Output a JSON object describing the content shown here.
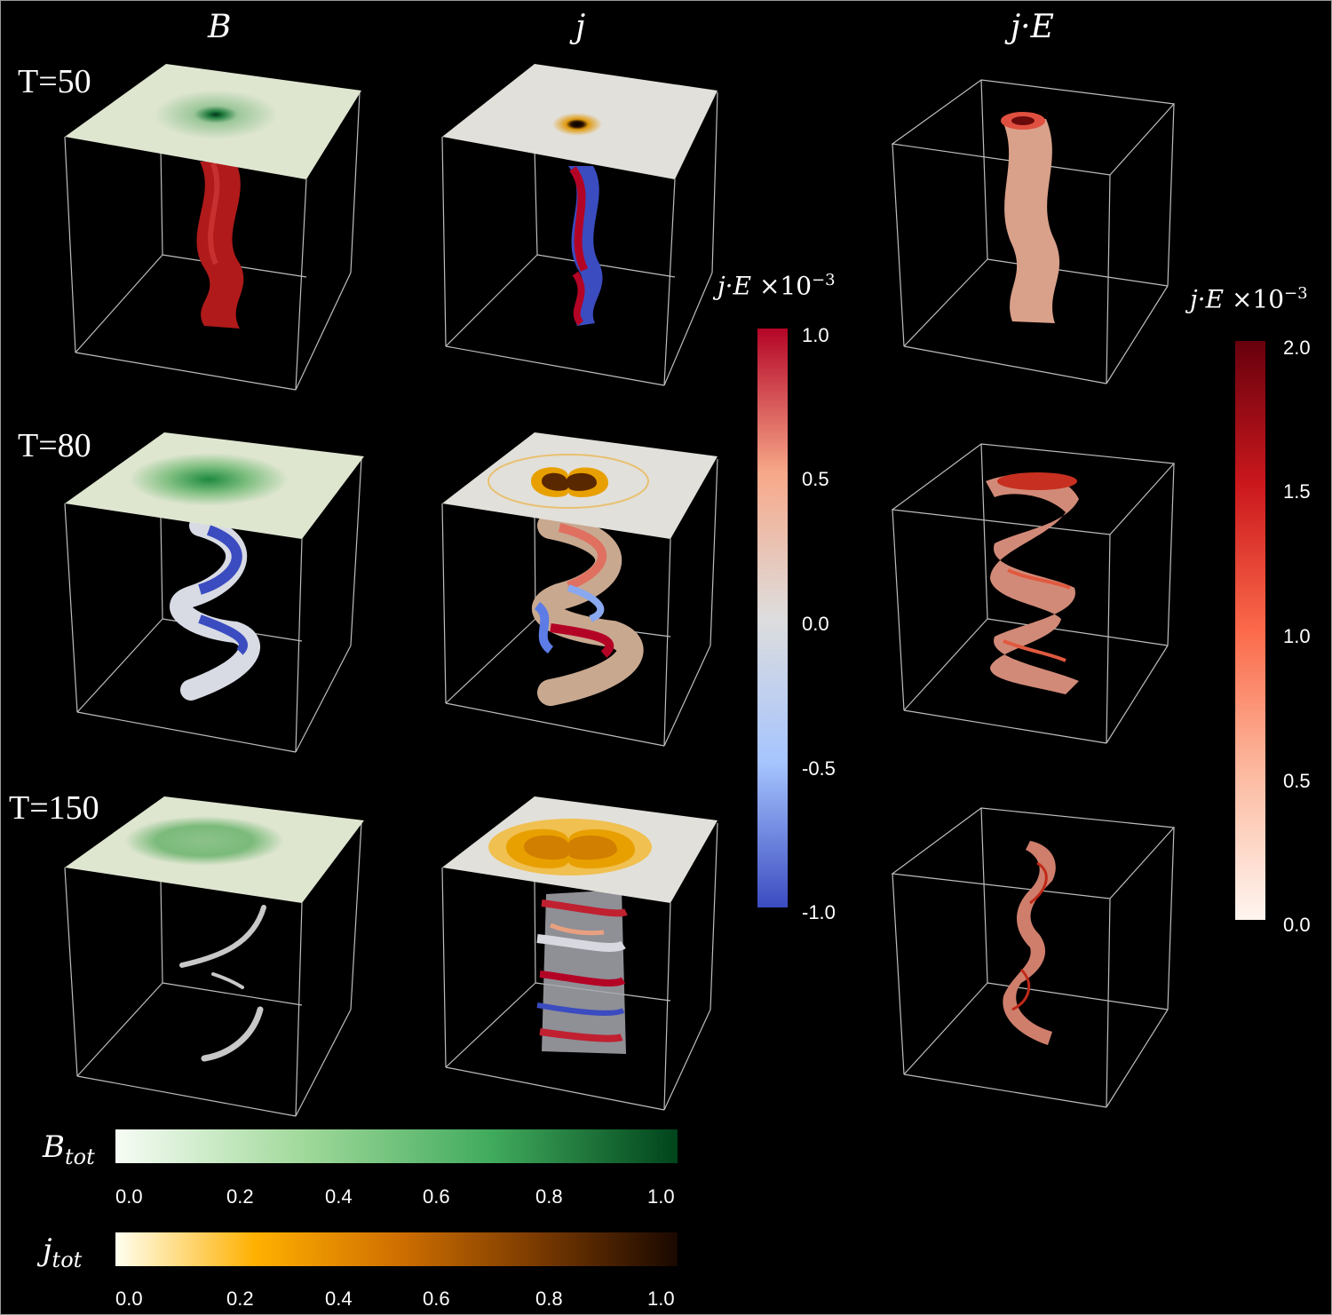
{
  "columns": [
    "B",
    "j",
    "j·E"
  ],
  "rows": [
    "T=50",
    "T=80",
    "T=150"
  ],
  "colorbar_j": {
    "title": "j·E",
    "exp": "×10",
    "sup": "−3",
    "ticks": [
      "1.0",
      "0.5",
      "0.0",
      "-0.5",
      "-1.0"
    ],
    "colors": [
      "#b40426",
      "#f7a889",
      "#dddddd",
      "#a6c4fe",
      "#3b4cc0"
    ]
  },
  "colorbar_jE": {
    "title": "j·E",
    "exp": "×10",
    "sup": "−3",
    "ticks": [
      "2.0",
      "1.5",
      "1.0",
      "0.5",
      "0.0"
    ],
    "colors": [
      "#67000d",
      "#cb181d",
      "#fb6a4a",
      "#fcbba1",
      "#fff5f0"
    ]
  },
  "colorbar_Btot": {
    "label": "B",
    "sub": "tot",
    "ticks": [
      "0.0",
      "0.2",
      "0.4",
      "0.6",
      "0.8",
      "1.0"
    ],
    "colors": [
      "#f7fcf5",
      "#a1d99b",
      "#41ab5d",
      "#00441b"
    ]
  },
  "colorbar_jtot": {
    "label": "j",
    "sub": "tot",
    "ticks": [
      "0.0",
      "0.2",
      "0.4",
      "0.6",
      "0.8",
      "1.0"
    ],
    "colors": [
      "#fffff0",
      "#ffb000",
      "#d07000",
      "#7a3a00",
      "#1a0800"
    ]
  }
}
